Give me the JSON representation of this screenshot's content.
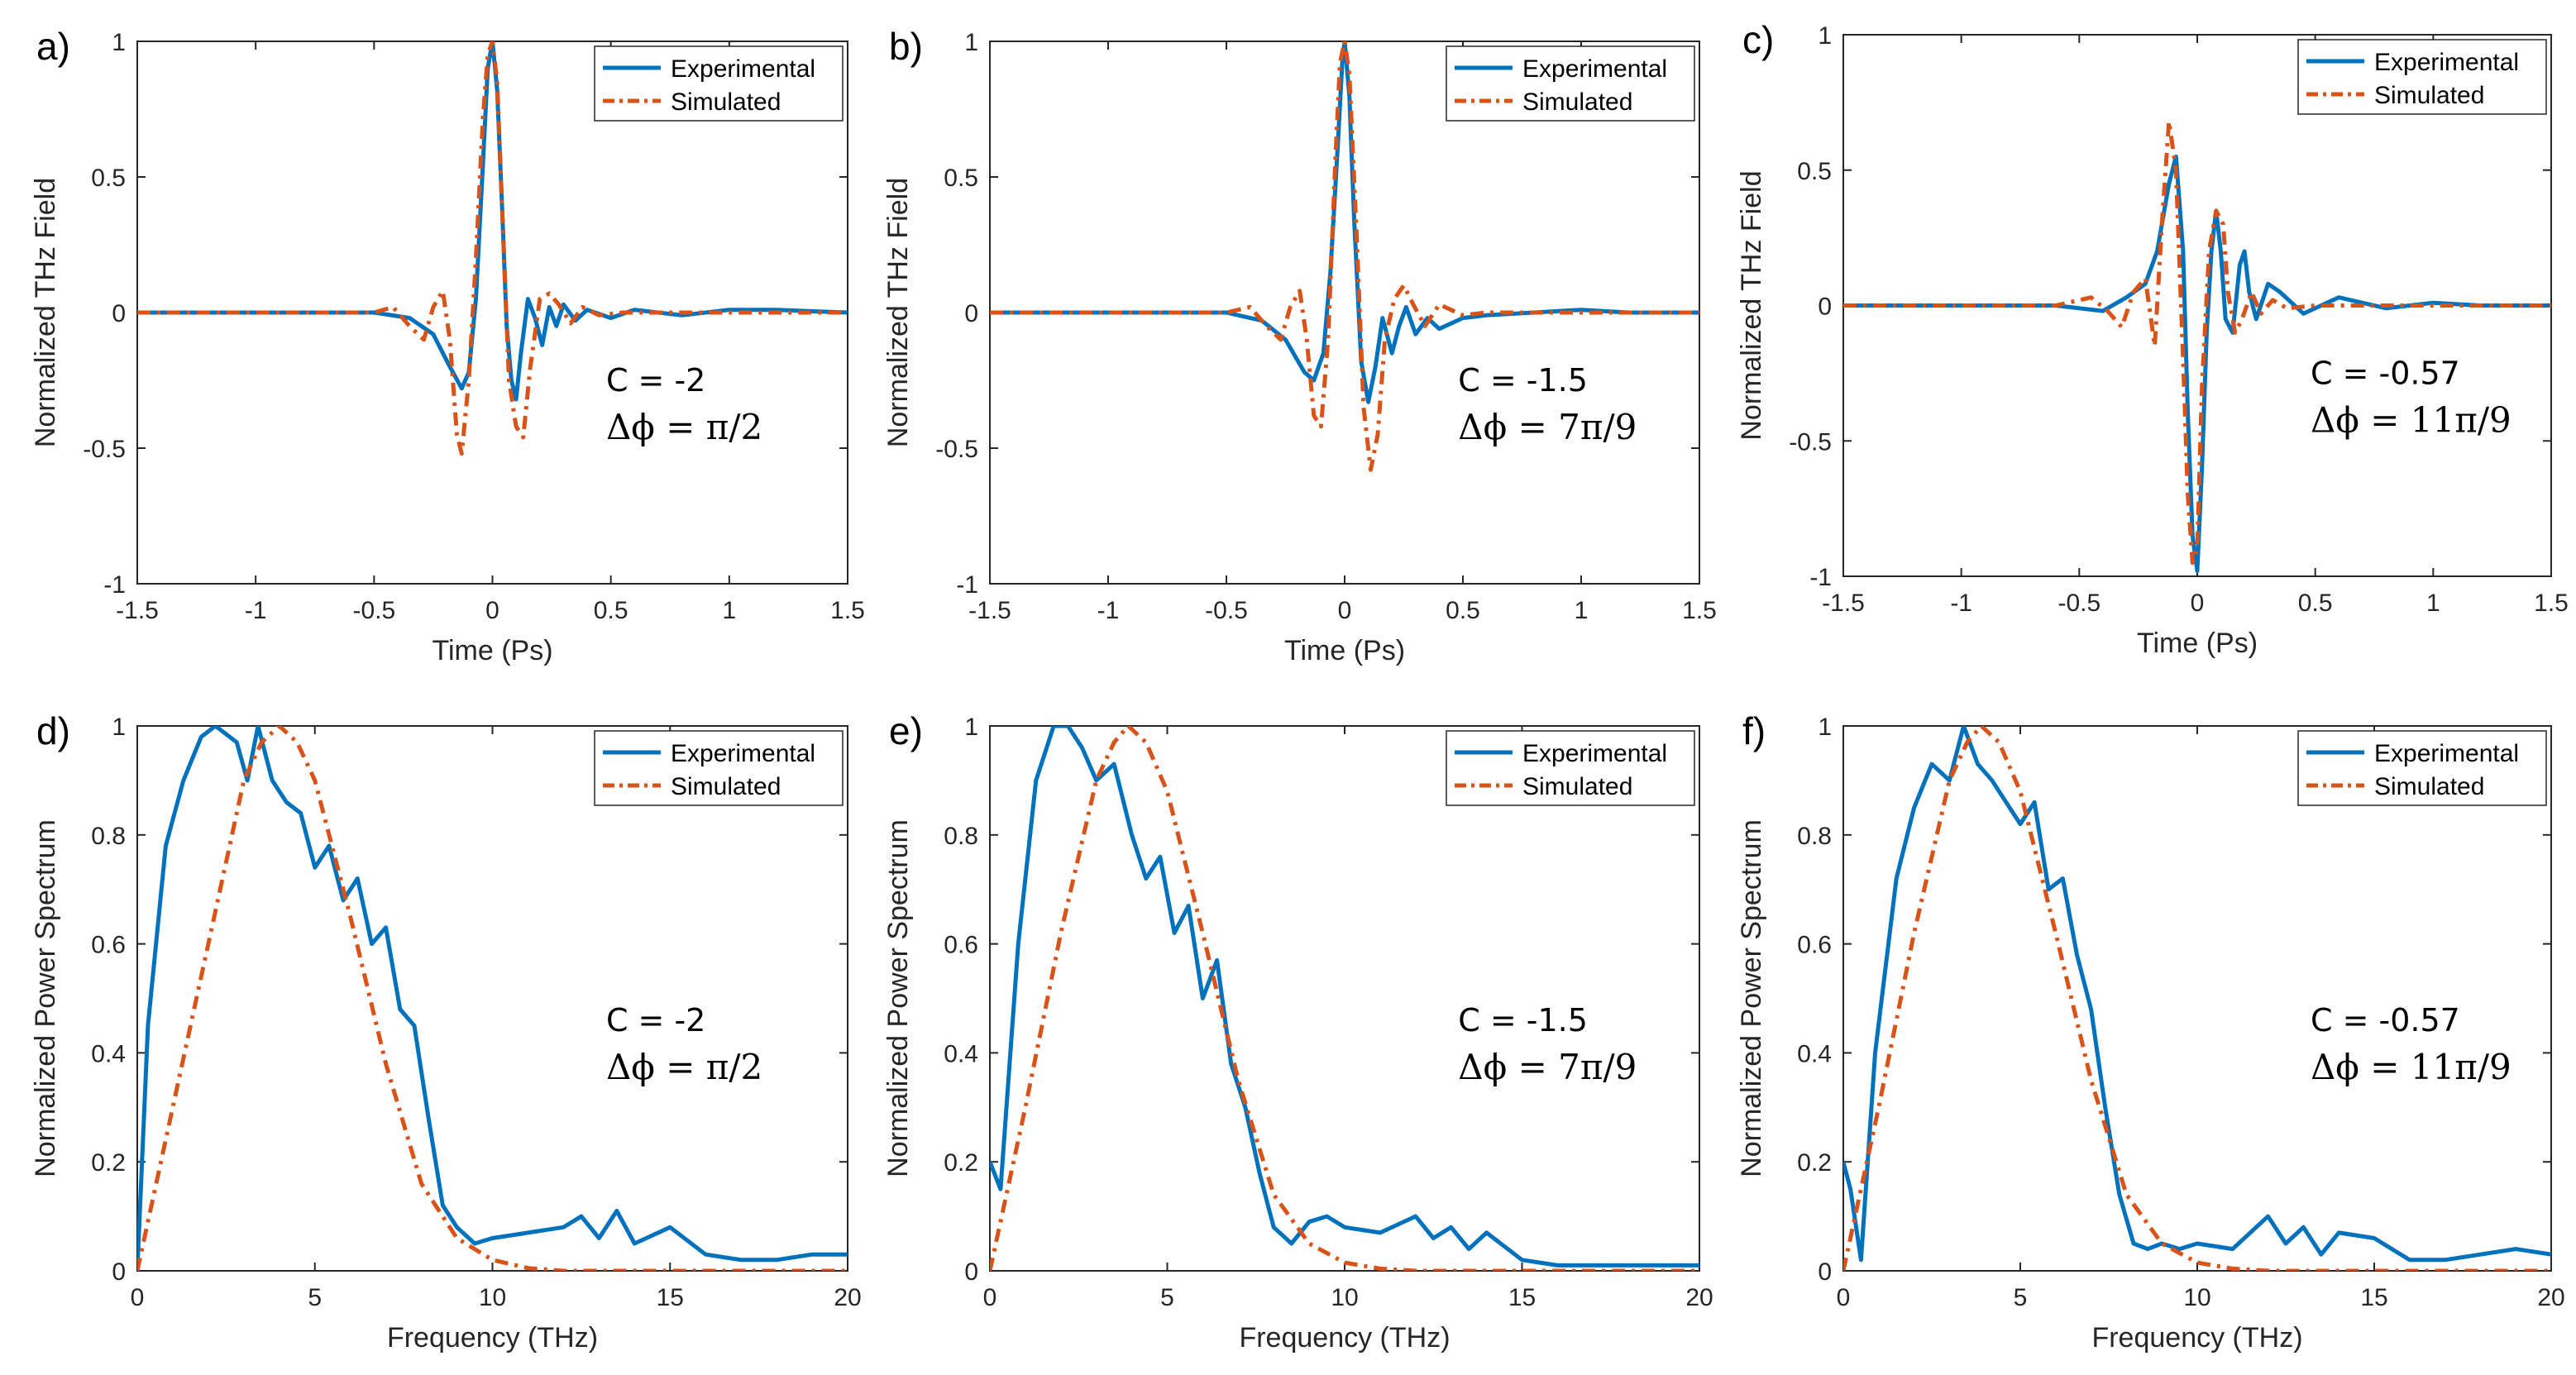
{
  "colors": {
    "experimental": "#0072BD",
    "simulated": "#D95319",
    "axis": "#262626"
  },
  "chart_data": [
    {
      "panel_label": "a)",
      "type": "line",
      "xlabel": "Time (Ps)",
      "ylabel": "Normalized THz Field",
      "xlim": [
        -1.5,
        1.5
      ],
      "ylim": [
        -1,
        1
      ],
      "xticks": [
        "-1.5",
        "-1",
        "-0.5",
        "0",
        "0.5",
        "1",
        "1.5"
      ],
      "yticks": [
        "-1",
        "-0.5",
        "0",
        "0.5",
        "1"
      ],
      "legend": [
        "Experimental",
        "Simulated"
      ],
      "legend_position": "top-right",
      "annotation_c": "C = -2",
      "annotation_phi": "Δϕ =  π/2",
      "annotation_anchor": "lower-right",
      "series": [
        {
          "name": "Experimental",
          "style": "solid",
          "x": [
            -1.5,
            -0.5,
            -0.35,
            -0.25,
            -0.18,
            -0.13,
            -0.1,
            -0.07,
            -0.04,
            -0.02,
            0,
            0.02,
            0.04,
            0.06,
            0.08,
            0.1,
            0.12,
            0.15,
            0.18,
            0.21,
            0.24,
            0.27,
            0.3,
            0.35,
            0.4,
            0.5,
            0.6,
            0.8,
            1.0,
            1.2,
            1.5
          ],
          "y": [
            0,
            0,
            -0.02,
            -0.08,
            -0.2,
            -0.28,
            -0.22,
            0.05,
            0.55,
            0.9,
            1,
            0.82,
            0.4,
            -0.05,
            -0.25,
            -0.32,
            -0.15,
            0.05,
            -0.02,
            -0.12,
            0.02,
            -0.05,
            0.03,
            -0.03,
            0.01,
            -0.02,
            0.01,
            -0.01,
            0.01,
            0.01,
            0
          ]
        },
        {
          "name": "Simulated",
          "style": "dashdot",
          "x": [
            -1.5,
            -0.5,
            -0.42,
            -0.35,
            -0.29,
            -0.25,
            -0.21,
            -0.18,
            -0.15,
            -0.13,
            -0.1,
            -0.07,
            -0.04,
            -0.02,
            0,
            0.02,
            0.04,
            0.07,
            0.1,
            0.13,
            0.16,
            0.2,
            0.24,
            0.28,
            0.33,
            0.38,
            0.45,
            0.55,
            1.5
          ],
          "y": [
            0,
            0,
            0.02,
            -0.05,
            -0.1,
            0.02,
            0.08,
            -0.1,
            -0.45,
            -0.52,
            -0.25,
            0.2,
            0.72,
            0.95,
            1,
            0.85,
            0.4,
            -0.25,
            -0.42,
            -0.46,
            -0.2,
            0.05,
            0.07,
            0.03,
            -0.04,
            0.02,
            -0.01,
            0,
            0
          ]
        }
      ]
    },
    {
      "panel_label": "b)",
      "type": "line",
      "xlabel": "Time (Ps)",
      "ylabel": "Normalized THz Field",
      "xlim": [
        -1.5,
        1.5
      ],
      "ylim": [
        -1,
        1
      ],
      "xticks": [
        "-1.5",
        "-1",
        "-0.5",
        "0",
        "0.5",
        "1",
        "1.5"
      ],
      "yticks": [
        "-1",
        "-0.5",
        "0",
        "0.5",
        "1"
      ],
      "legend": [
        "Experimental",
        "Simulated"
      ],
      "legend_position": "top-right",
      "annotation_c": "C = -1.5",
      "annotation_phi": "Δϕ = 7π/9",
      "annotation_anchor": "lower-right",
      "series": [
        {
          "name": "Experimental",
          "style": "solid",
          "x": [
            -1.5,
            -0.5,
            -0.35,
            -0.25,
            -0.17,
            -0.13,
            -0.09,
            -0.06,
            -0.03,
            -0.01,
            0,
            0.02,
            0.04,
            0.07,
            0.1,
            0.13,
            0.16,
            0.2,
            0.23,
            0.26,
            0.3,
            0.35,
            0.4,
            0.5,
            0.6,
            0.8,
            1.0,
            1.2,
            1.5
          ],
          "y": [
            0,
            0,
            -0.03,
            -0.1,
            -0.22,
            -0.25,
            -0.15,
            0.15,
            0.6,
            0.92,
            1,
            0.8,
            0.35,
            -0.18,
            -0.33,
            -0.2,
            -0.02,
            -0.15,
            -0.05,
            0.02,
            -0.08,
            -0.02,
            -0.06,
            -0.02,
            -0.01,
            0,
            0.01,
            0,
            0
          ]
        },
        {
          "name": "Simulated",
          "style": "dashdot",
          "x": [
            -1.5,
            -0.5,
            -0.4,
            -0.33,
            -0.27,
            -0.23,
            -0.19,
            -0.16,
            -0.13,
            -0.1,
            -0.07,
            -0.04,
            -0.02,
            0,
            0.02,
            0.05,
            0.08,
            0.11,
            0.14,
            0.17,
            0.21,
            0.25,
            0.29,
            0.34,
            0.4,
            0.5,
            0.6,
            1.5
          ],
          "y": [
            0,
            0,
            0.02,
            -0.05,
            -0.1,
            0.02,
            0.08,
            -0.1,
            -0.38,
            -0.42,
            -0.1,
            0.55,
            0.92,
            1,
            0.88,
            0.3,
            -0.35,
            -0.58,
            -0.45,
            -0.1,
            0.05,
            0.1,
            0.03,
            -0.05,
            0.03,
            -0.01,
            0,
            0
          ]
        }
      ]
    },
    {
      "panel_label": "c)",
      "type": "line",
      "xlabel": "Time (Ps)",
      "ylabel": "Normalized THz Field",
      "xlim": [
        -1.5,
        1.5
      ],
      "ylim": [
        -1,
        1
      ],
      "xticks": [
        "-1.5",
        "-1",
        "-0.5",
        "0",
        "0.5",
        "1",
        "1.5"
      ],
      "yticks": [
        "-1",
        "-0.5",
        "0",
        "0.5",
        "1"
      ],
      "legend": [
        "Experimental",
        "Simulated"
      ],
      "legend_position": "top-right",
      "annotation_c": "C = -0.57",
      "annotation_phi": "Δϕ = 11π/9",
      "annotation_anchor": "lower-right",
      "series": [
        {
          "name": "Experimental",
          "style": "solid",
          "x": [
            -1.5,
            -0.6,
            -0.4,
            -0.3,
            -0.22,
            -0.17,
            -0.12,
            -0.09,
            -0.06,
            -0.04,
            -0.02,
            0,
            0.02,
            0.04,
            0.06,
            0.08,
            0.1,
            0.12,
            0.15,
            0.18,
            0.2,
            0.22,
            0.25,
            0.3,
            0.35,
            0.45,
            0.6,
            0.8,
            1.0,
            1.2,
            1.5
          ],
          "y": [
            0,
            0,
            -0.02,
            0.03,
            0.08,
            0.2,
            0.45,
            0.55,
            0.2,
            -0.4,
            -0.85,
            -0.98,
            -0.6,
            -0.1,
            0.2,
            0.35,
            0.2,
            -0.05,
            -0.1,
            0.15,
            0.2,
            0.05,
            -0.05,
            0.08,
            0.05,
            -0.03,
            0.03,
            -0.01,
            0.01,
            0,
            0
          ]
        },
        {
          "name": "Simulated",
          "style": "dashdot",
          "x": [
            -1.5,
            -0.6,
            -0.45,
            -0.38,
            -0.32,
            -0.27,
            -0.22,
            -0.18,
            -0.15,
            -0.12,
            -0.09,
            -0.06,
            -0.04,
            -0.02,
            0,
            0.02,
            0.05,
            0.08,
            0.11,
            0.13,
            0.16,
            0.19,
            0.23,
            0.27,
            0.32,
            0.38,
            0.5,
            0.7,
            1.5
          ],
          "y": [
            0,
            0,
            0.03,
            -0.02,
            -0.08,
            0.05,
            0.1,
            -0.15,
            0.3,
            0.68,
            0.5,
            -0.2,
            -0.7,
            -0.95,
            -0.9,
            -0.3,
            0.2,
            0.35,
            0.3,
            0.05,
            -0.1,
            -0.05,
            0.05,
            -0.03,
            0.02,
            -0.01,
            0,
            0,
            0
          ]
        }
      ]
    },
    {
      "panel_label": "d)",
      "type": "line",
      "xlabel": "Frequency (THz)",
      "ylabel": "Normalized Power Spectrum",
      "xlim": [
        0,
        20
      ],
      "ylim": [
        0,
        1
      ],
      "xticks": [
        "0",
        "5",
        "10",
        "15",
        "20"
      ],
      "yticks": [
        "0",
        "0.2",
        "0.4",
        "0.6",
        "0.8",
        "1"
      ],
      "legend": [
        "Experimental",
        "Simulated"
      ],
      "legend_position": "top-right",
      "annotation_c": "C = -2",
      "annotation_phi": "Δϕ =  π/2",
      "annotation_anchor": "center-right",
      "series": [
        {
          "name": "Experimental",
          "style": "solid",
          "x": [
            0,
            0.3,
            0.8,
            1.3,
            1.8,
            2.2,
            2.8,
            3.1,
            3.4,
            3.8,
            4.2,
            4.6,
            5.0,
            5.4,
            5.8,
            6.2,
            6.6,
            7.0,
            7.4,
            7.8,
            8.2,
            8.6,
            9.0,
            9.5,
            10,
            11,
            12,
            12.5,
            13,
            13.5,
            14,
            15,
            16,
            17,
            18,
            19,
            20
          ],
          "y": [
            0,
            0.45,
            0.78,
            0.9,
            0.98,
            1.0,
            0.97,
            0.9,
            1.0,
            0.9,
            0.86,
            0.84,
            0.74,
            0.78,
            0.68,
            0.72,
            0.6,
            0.63,
            0.48,
            0.45,
            0.28,
            0.12,
            0.08,
            0.05,
            0.06,
            0.07,
            0.08,
            0.1,
            0.06,
            0.11,
            0.05,
            0.08,
            0.03,
            0.02,
            0.02,
            0.03,
            0.03
          ]
        },
        {
          "name": "Simulated",
          "style": "dashdot",
          "x": [
            0,
            1,
            2,
            3,
            3.5,
            4,
            4.5,
            5,
            6,
            7,
            8,
            9,
            10,
            11,
            12,
            13,
            14,
            16,
            20
          ],
          "y": [
            0,
            0.3,
            0.6,
            0.9,
            0.97,
            1.0,
            0.97,
            0.9,
            0.65,
            0.38,
            0.16,
            0.06,
            0.02,
            0.005,
            0,
            0,
            0,
            0,
            0
          ]
        }
      ]
    },
    {
      "panel_label": "e)",
      "type": "line",
      "xlabel": "Frequency (THz)",
      "ylabel": "Normalized Power Spectrum",
      "xlim": [
        0,
        20
      ],
      "ylim": [
        0,
        1
      ],
      "xticks": [
        "0",
        "5",
        "10",
        "15",
        "20"
      ],
      "yticks": [
        "0",
        "0.2",
        "0.4",
        "0.6",
        "0.8",
        "1"
      ],
      "legend": [
        "Experimental",
        "Simulated"
      ],
      "legend_position": "top-right",
      "annotation_c": "C = -1.5",
      "annotation_phi": "Δϕ = 7π/9",
      "annotation_anchor": "center-right",
      "series": [
        {
          "name": "Experimental",
          "style": "solid",
          "x": [
            0,
            0.3,
            0.8,
            1.3,
            1.8,
            2.2,
            2.6,
            3.0,
            3.5,
            4.0,
            4.4,
            4.8,
            5.2,
            5.6,
            6.0,
            6.4,
            6.8,
            7.2,
            7.6,
            8.0,
            8.5,
            9.0,
            9.5,
            10,
            11,
            12,
            12.5,
            13,
            13.5,
            14,
            15,
            16,
            17,
            18,
            19,
            20
          ],
          "y": [
            0.2,
            0.15,
            0.6,
            0.9,
            1.0,
            1.0,
            0.96,
            0.9,
            0.93,
            0.8,
            0.72,
            0.76,
            0.62,
            0.67,
            0.5,
            0.57,
            0.38,
            0.3,
            0.18,
            0.08,
            0.05,
            0.09,
            0.1,
            0.08,
            0.07,
            0.1,
            0.06,
            0.08,
            0.04,
            0.07,
            0.02,
            0.01,
            0.01,
            0.01,
            0.01,
            0.01
          ]
        },
        {
          "name": "Simulated",
          "style": "dashdot",
          "x": [
            0,
            1,
            2,
            3,
            3.5,
            3.9,
            4.4,
            5,
            6,
            7,
            8,
            9,
            10,
            11,
            12,
            13,
            14,
            16,
            20
          ],
          "y": [
            0,
            0.3,
            0.62,
            0.9,
            0.97,
            1.0,
            0.97,
            0.88,
            0.62,
            0.35,
            0.14,
            0.05,
            0.015,
            0.004,
            0,
            0,
            0,
            0,
            0
          ]
        }
      ]
    },
    {
      "panel_label": "f)",
      "type": "line",
      "xlabel": "Frequency (THz)",
      "ylabel": "Normalized Power Spectrum",
      "xlim": [
        0,
        20
      ],
      "ylim": [
        0,
        1
      ],
      "xticks": [
        "0",
        "5",
        "10",
        "15",
        "20"
      ],
      "yticks": [
        "0",
        "0.2",
        "0.4",
        "0.6",
        "0.8",
        "1"
      ],
      "legend": [
        "Experimental",
        "Simulated"
      ],
      "legend_position": "top-right",
      "annotation_c": "C = -0.57",
      "annotation_phi": "Δϕ = 11π/9",
      "annotation_anchor": "center-right",
      "series": [
        {
          "name": "Experimental",
          "style": "solid",
          "x": [
            0,
            0.2,
            0.5,
            0.9,
            1.5,
            2.0,
            2.5,
            3.0,
            3.4,
            3.8,
            4.2,
            4.6,
            5.0,
            5.4,
            5.8,
            6.2,
            6.6,
            7.0,
            7.4,
            7.8,
            8.2,
            8.6,
            9.0,
            9.5,
            10,
            11,
            12,
            12.5,
            13,
            13.5,
            14,
            15,
            16,
            17,
            18,
            19,
            20
          ],
          "y": [
            0.2,
            0.15,
            0.02,
            0.4,
            0.72,
            0.85,
            0.93,
            0.9,
            1.0,
            0.93,
            0.9,
            0.86,
            0.82,
            0.86,
            0.7,
            0.72,
            0.58,
            0.48,
            0.3,
            0.14,
            0.05,
            0.04,
            0.05,
            0.04,
            0.05,
            0.04,
            0.1,
            0.05,
            0.08,
            0.03,
            0.07,
            0.06,
            0.02,
            0.02,
            0.03,
            0.04,
            0.03
          ]
        },
        {
          "name": "Simulated",
          "style": "dashdot",
          "x": [
            0,
            1,
            2,
            3,
            3.5,
            3.9,
            4.4,
            5,
            6,
            7,
            8,
            9,
            10,
            11,
            12,
            13,
            14,
            16,
            20
          ],
          "y": [
            0,
            0.3,
            0.62,
            0.9,
            0.97,
            1.0,
            0.97,
            0.88,
            0.62,
            0.35,
            0.14,
            0.05,
            0.015,
            0.004,
            0,
            0,
            0,
            0,
            0
          ]
        }
      ]
    }
  ]
}
